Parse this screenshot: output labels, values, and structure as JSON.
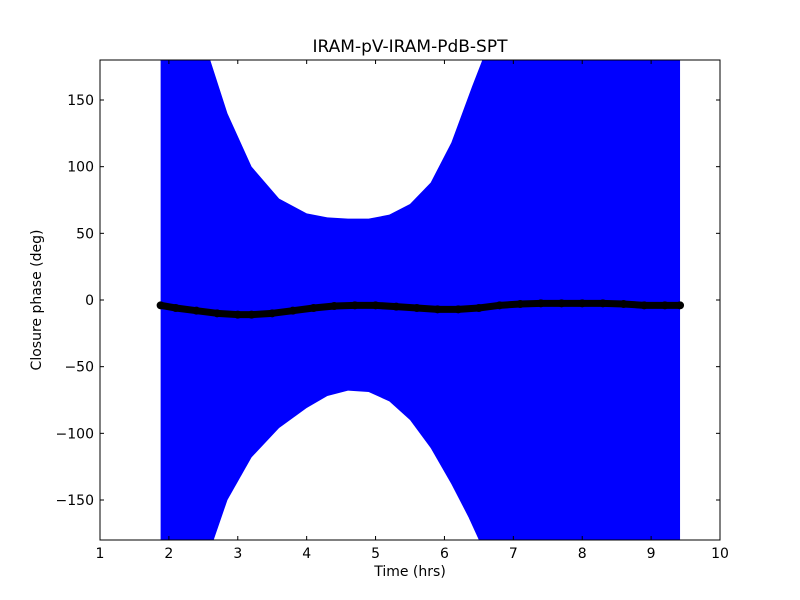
{
  "chart_data": {
    "type": "scatter",
    "title": "IRAM-pV-IRAM-PdB-SPT",
    "xlabel": "Time (hrs)",
    "ylabel": "Closure phase (deg)",
    "xlim": [
      1,
      10
    ],
    "ylim": [
      -180,
      180
    ],
    "x_ticks": [
      1,
      2,
      3,
      4,
      5,
      6,
      7,
      8,
      9,
      10
    ],
    "x_tick_labels": [
      "1",
      "2",
      "3",
      "4",
      "5",
      "6",
      "7",
      "8",
      "9",
      "10"
    ],
    "y_ticks": [
      -150,
      -100,
      -50,
      0,
      50,
      100,
      150
    ],
    "y_tick_labels": [
      "−150",
      "−100",
      "−50",
      "0",
      "50",
      "100",
      "150"
    ],
    "grid": false,
    "series": [
      {
        "color": "#000000",
        "marker": "circle",
        "x": [
          1.88,
          2.1,
          2.4,
          2.7,
          3.0,
          3.2,
          3.5,
          3.8,
          4.1,
          4.4,
          4.7,
          5.0,
          5.3,
          5.6,
          5.9,
          6.2,
          6.5,
          6.8,
          7.1,
          7.4,
          7.7,
          8.0,
          8.3,
          8.6,
          8.9,
          9.2,
          9.42
        ],
        "y": [
          -4,
          -6,
          -8,
          -10,
          -11,
          -11,
          -10,
          -8,
          -6,
          -4.5,
          -4,
          -4,
          -5,
          -6,
          -7,
          -7,
          -6,
          -4,
          -3,
          -2.5,
          -2.5,
          -2.5,
          -2.5,
          -3,
          -4,
          -4,
          -4
        ]
      }
    ],
    "error_band": {
      "color": "#0000ff",
      "x_range": [
        1.88,
        9.42
      ],
      "upper_gap_edge": [
        [
          2.6,
          180
        ],
        [
          2.85,
          140
        ],
        [
          3.2,
          100
        ],
        [
          3.6,
          76
        ],
        [
          4.0,
          65
        ],
        [
          4.3,
          62
        ],
        [
          4.6,
          61
        ],
        [
          4.9,
          61
        ],
        [
          5.2,
          64
        ],
        [
          5.5,
          72
        ],
        [
          5.8,
          88
        ],
        [
          6.1,
          118
        ],
        [
          6.4,
          160
        ],
        [
          6.55,
          180
        ]
      ],
      "lower_gap_edge": [
        [
          2.65,
          -180
        ],
        [
          2.85,
          -150
        ],
        [
          3.2,
          -118
        ],
        [
          3.6,
          -96
        ],
        [
          4.0,
          -81
        ],
        [
          4.3,
          -72
        ],
        [
          4.6,
          -68
        ],
        [
          4.9,
          -69
        ],
        [
          5.2,
          -76
        ],
        [
          5.5,
          -90
        ],
        [
          5.8,
          -111
        ],
        [
          6.1,
          -138
        ],
        [
          6.35,
          -163
        ],
        [
          6.5,
          -180
        ]
      ]
    }
  },
  "colors": {
    "band": "#0000ff",
    "points": "#000000",
    "frame": "#000000"
  }
}
